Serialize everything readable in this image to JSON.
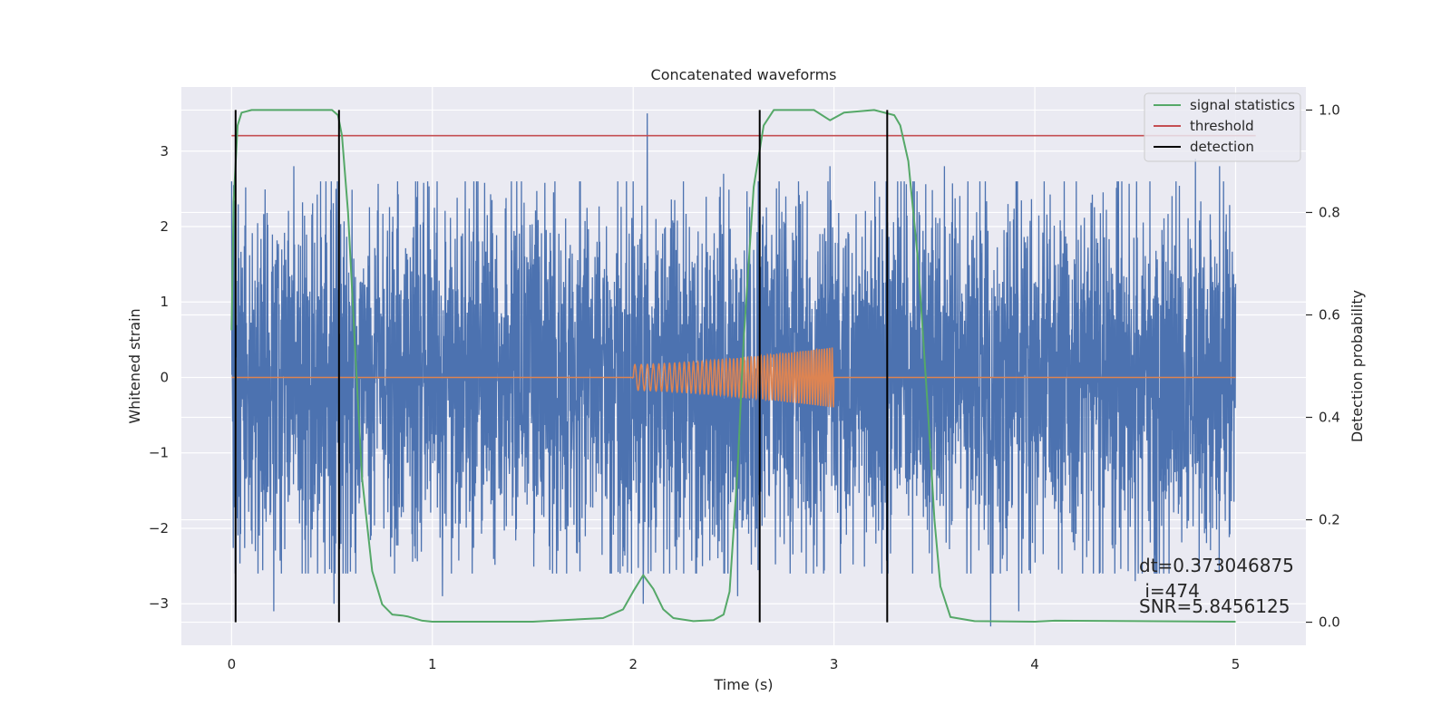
{
  "chart_data": {
    "type": "line",
    "title": "Concatenated waveforms",
    "xlabel": "Time (s)",
    "ylabel_left": "Whitened strain",
    "ylabel_right": "Detection probability",
    "xlim": [
      -0.25,
      5.35
    ],
    "ylim_left": [
      -3.55,
      3.85
    ],
    "ylim_right": [
      -0.045,
      1.045
    ],
    "x_ticks": [
      0,
      1,
      2,
      3,
      4,
      5
    ],
    "x_tick_labels": [
      "0",
      "1",
      "2",
      "3",
      "4",
      "5"
    ],
    "y_left_ticks": [
      -3,
      -2,
      -1,
      0,
      1,
      2,
      3
    ],
    "y_left_tick_labels": [
      "−3",
      "−2",
      "−1",
      "0",
      "1",
      "2",
      "3"
    ],
    "y_right_ticks": [
      0.0,
      0.2,
      0.4,
      0.6,
      0.8,
      1.0
    ],
    "y_right_tick_labels": [
      "0.0",
      "0.2",
      "0.4",
      "0.6",
      "0.8",
      "1.0"
    ],
    "grid": true,
    "legend_position": "top-right",
    "legend": [
      {
        "label": "signal statistics",
        "color": "#55a868"
      },
      {
        "label": "threshold",
        "color": "#c44e52"
      },
      {
        "label": "detection",
        "color": "#000000"
      }
    ],
    "series": [
      {
        "name": "",
        "axis": "left",
        "color": "#4c72b0",
        "description_kind": "noise",
        "x_range": [
          0,
          5
        ],
        "amplitude_typical": 1.4,
        "peak_values": [
          {
            "x": 0.21,
            "y": 2.3
          },
          {
            "x": 0.31,
            "y": 2.8
          },
          {
            "x": 0.52,
            "y": 2.5
          },
          {
            "x": 2.07,
            "y": 3.5
          },
          {
            "x": 2.45,
            "y": 2.7
          },
          {
            "x": 2.98,
            "y": 2.8
          },
          {
            "x": 3.55,
            "y": 2.8
          },
          {
            "x": 4.8,
            "y": 2.9
          },
          {
            "x": 4.92,
            "y": 2.8
          },
          {
            "x": 0.21,
            "y": -3.1
          },
          {
            "x": 0.51,
            "y": -3.0
          },
          {
            "x": 1.05,
            "y": -2.9
          },
          {
            "x": 2.05,
            "y": -3.0
          },
          {
            "x": 3.78,
            "y": -3.3
          },
          {
            "x": 3.92,
            "y": -3.1
          },
          {
            "x": 2.52,
            "y": -2.9
          },
          {
            "x": 4.5,
            "y": -2.7
          },
          {
            "x": 4.62,
            "y": -2.6
          }
        ]
      },
      {
        "name": "",
        "axis": "left",
        "color": "#dd8452",
        "description_kind": "chirp",
        "x_range": [
          0,
          5
        ],
        "chirp_start": 2.0,
        "chirp_end": 3.0,
        "amplitude_start": 0.17,
        "amplitude_end": 0.4
      },
      {
        "name": "signal statistics",
        "axis": "right",
        "color": "#55a868",
        "x": [
          0,
          0.01,
          0.03,
          0.05,
          0.1,
          0.3,
          0.5,
          0.53,
          0.55,
          0.58,
          0.62,
          0.65,
          0.7,
          0.75,
          0.8,
          0.85,
          0.88,
          0.95,
          1.0,
          1.5,
          1.85,
          1.95,
          2.0,
          2.05,
          2.1,
          2.15,
          2.2,
          2.3,
          2.4,
          2.45,
          2.48,
          2.52,
          2.55,
          2.6,
          2.65,
          2.7,
          2.75,
          2.9,
          2.98,
          3.05,
          3.2,
          3.3,
          3.33,
          3.37,
          3.42,
          3.47,
          3.5,
          3.53,
          3.58,
          3.7,
          4.0,
          4.1,
          4.5,
          5.0
        ],
        "y": [
          0.57,
          0.82,
          0.97,
          0.995,
          1.0,
          1.0,
          1.0,
          0.99,
          0.95,
          0.8,
          0.5,
          0.28,
          0.1,
          0.035,
          0.015,
          0.013,
          0.011,
          0.003,
          0.001,
          0.001,
          0.008,
          0.025,
          0.06,
          0.092,
          0.065,
          0.025,
          0.008,
          0.002,
          0.004,
          0.015,
          0.06,
          0.3,
          0.55,
          0.85,
          0.97,
          1.0,
          1.0,
          1.0,
          0.98,
          0.995,
          1.0,
          0.99,
          0.97,
          0.9,
          0.7,
          0.4,
          0.2,
          0.07,
          0.01,
          0.002,
          0.001,
          0.003,
          0.002,
          0.001
        ]
      },
      {
        "name": "threshold",
        "axis": "right",
        "color": "#c44e52",
        "x": [
          0,
          5.1
        ],
        "y": [
          0.95,
          0.95
        ]
      }
    ],
    "detections": [
      0.02,
      0.535,
      2.63,
      3.265
    ],
    "detection_span_right": [
      0.0,
      1.0
    ],
    "annotation_lines": [
      "dt=0.373046875",
      " i=474",
      "SNR=5.8456125"
    ]
  }
}
